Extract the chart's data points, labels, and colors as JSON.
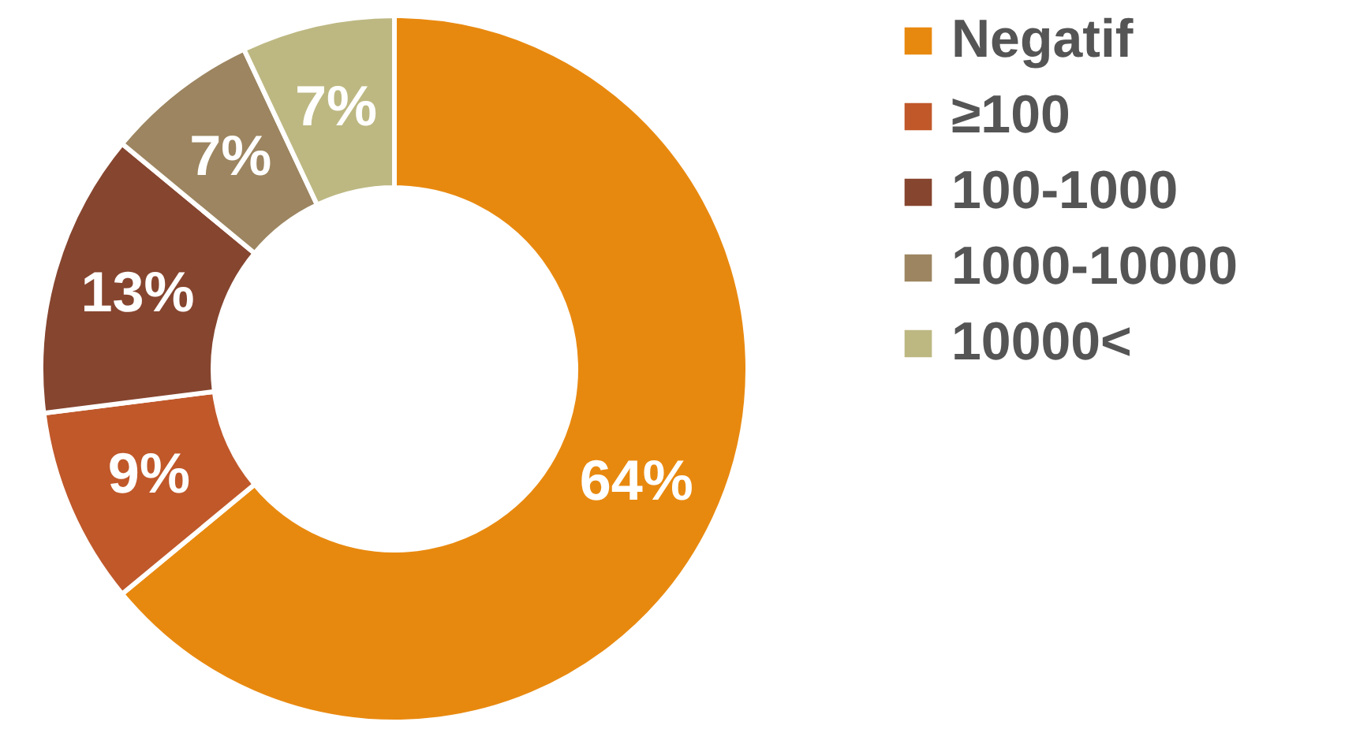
{
  "chart_data": {
    "type": "donut",
    "categories": [
      "Negatif",
      "≥100",
      "100-1000",
      "1000-10000",
      "10000<"
    ],
    "values": [
      64,
      9,
      13,
      7,
      7
    ],
    "colors": [
      "#e8890f",
      "#c0582a",
      "#86452f",
      "#9c8560",
      "#bdb882"
    ],
    "value_labels": [
      "64%",
      "9%",
      "13%",
      "7%",
      "7%"
    ],
    "legend": "right"
  }
}
